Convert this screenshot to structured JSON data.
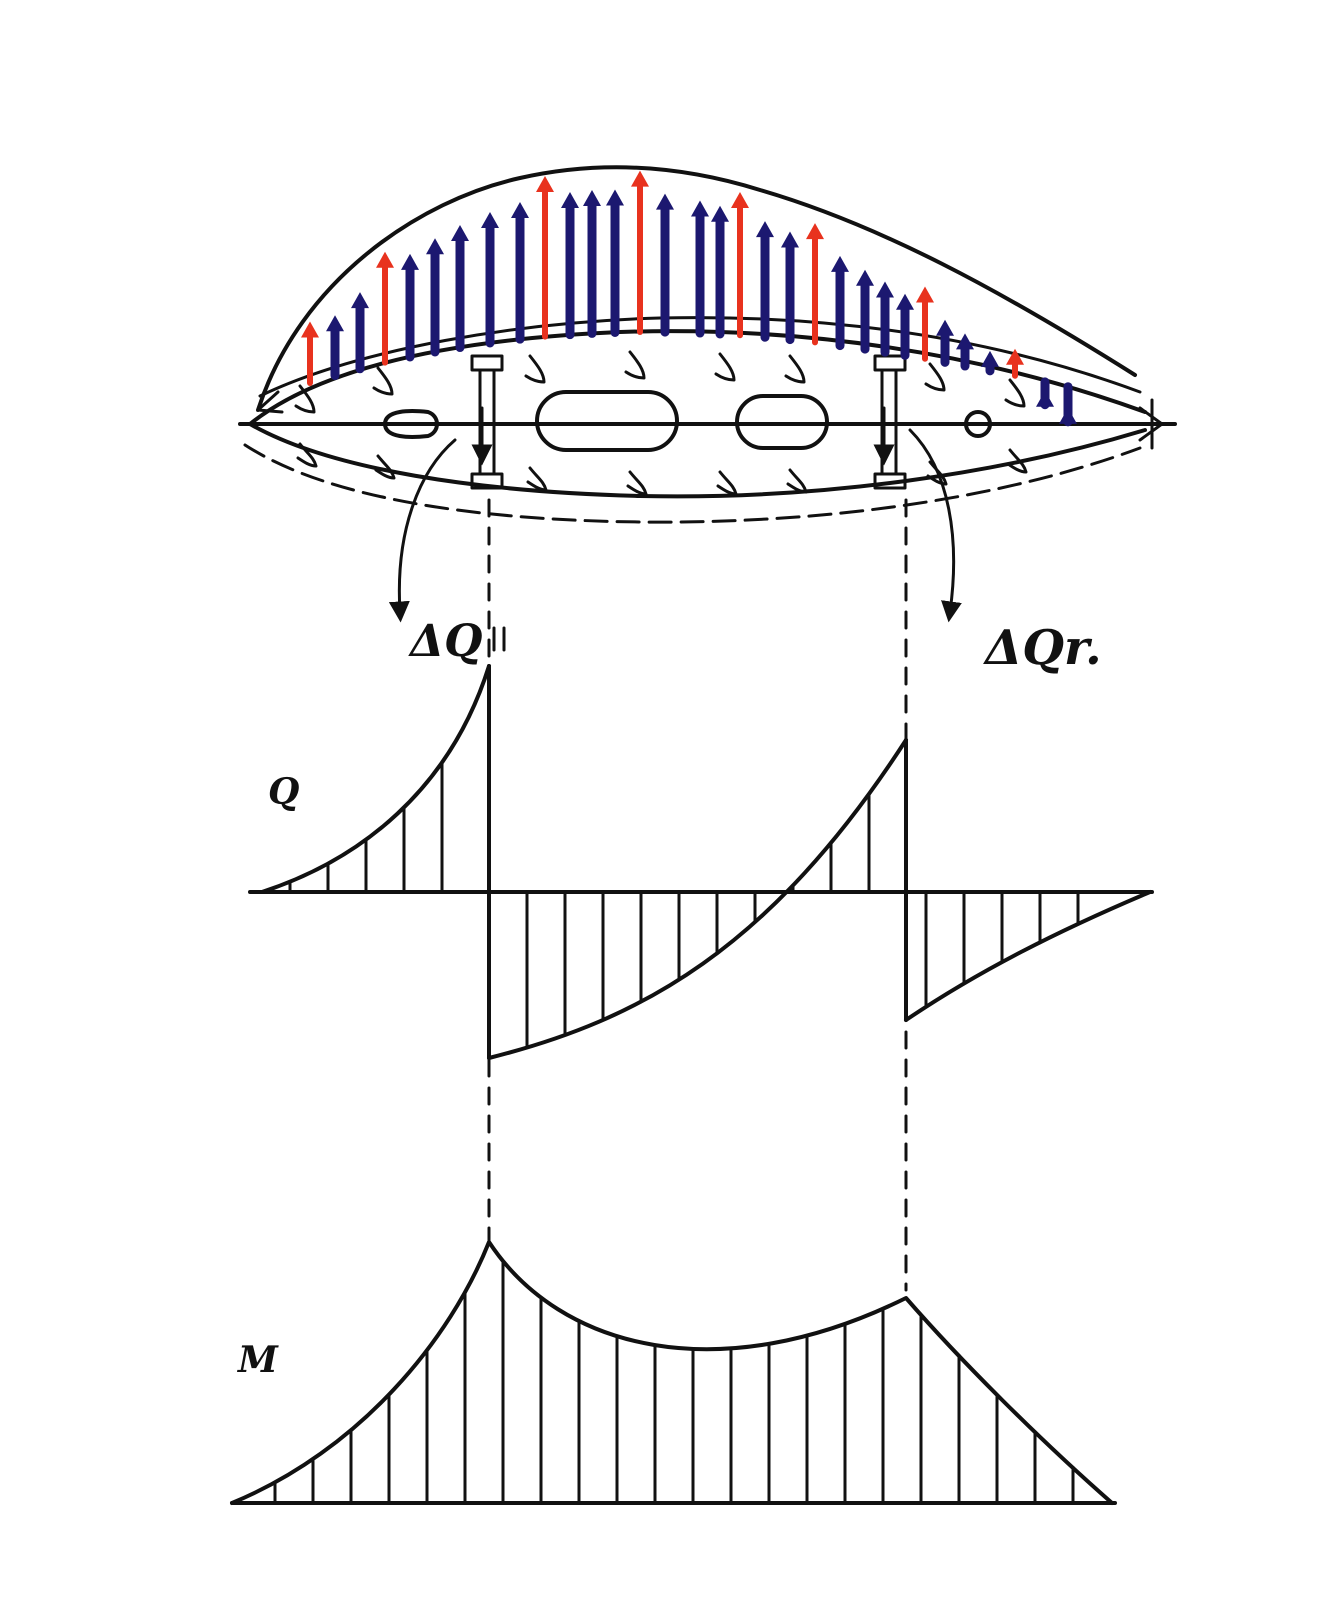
{
  "labels": {
    "shear_label": "Q",
    "moment_label": "M",
    "delta_q_left": "ΔQ",
    "delta_q_right": "ΔQr."
  },
  "colors": {
    "ink": "#111111",
    "air_load_arrow": "#e8321e",
    "structure_load_arrow": "#1c1870",
    "background": "#ffffff"
  }
}
